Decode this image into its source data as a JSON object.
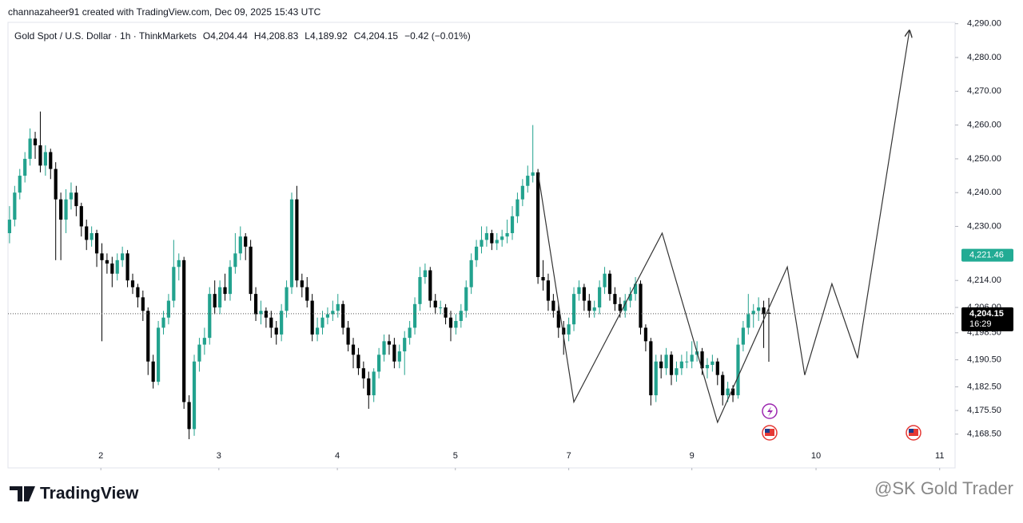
{
  "chart_data": {
    "type": "candlestick",
    "attribution": "channazaheer91 created with TradingView.com, Dec 09, 2025 15:43 UTC",
    "title": "Gold Spot / U.S. Dollar · 1h · ThinkMarkets",
    "header_values": [
      "O4,204.44",
      "H4,208.83",
      "L4,189.92",
      "C4,204.15",
      "−0.42 (−0.01%)"
    ],
    "up_color": "#22a28e",
    "down_color": "#000000",
    "ylim": [
      4158.5,
      4290.4
    ],
    "xlim": [
      -0.3,
      184.3
    ],
    "yticks": [
      {
        "value": 4290,
        "label": "4,290.00"
      },
      {
        "value": 4280,
        "label": "4,280.00"
      },
      {
        "value": 4270,
        "label": "4,270.00"
      },
      {
        "value": 4260,
        "label": "4,260.00"
      },
      {
        "value": 4250,
        "label": "4,250.00"
      },
      {
        "value": 4240,
        "label": "4,240.00"
      },
      {
        "value": 4230,
        "label": "4,230.00"
      },
      {
        "value": 4214,
        "label": "4,214.00"
      },
      {
        "value": 4206,
        "label": "4,206.00"
      },
      {
        "value": 4198.5,
        "label": "4,198.50"
      },
      {
        "value": 4190.5,
        "label": "4,190.50"
      },
      {
        "value": 4182.5,
        "label": "4,182.50"
      },
      {
        "value": 4175.5,
        "label": "4,175.50"
      },
      {
        "value": 4168.5,
        "label": "4,168.50"
      }
    ],
    "xticks": [
      {
        "value": 17.8,
        "label": "2"
      },
      {
        "value": 40.8,
        "label": "3"
      },
      {
        "value": 63.9,
        "label": "4"
      },
      {
        "value": 86.9,
        "label": "5"
      },
      {
        "value": 109,
        "label": "7"
      },
      {
        "value": 133,
        "label": "9"
      },
      {
        "value": 157.2,
        "label": "10"
      },
      {
        "value": 181.3,
        "label": "11"
      }
    ],
    "price_markers": [
      {
        "value": 4221.46,
        "label": "4,221.46",
        "color": "#22ab94"
      },
      {
        "value": 4204.15,
        "label": "4,204.15",
        "time": "16:29",
        "color": "#000000"
      }
    ],
    "projection": {
      "x": [
        103,
        110,
        127.2,
        138,
        151.6,
        155,
        160.3,
        165.3,
        175.4
      ],
      "y": [
        4246,
        4178,
        4228,
        4172,
        4218,
        4186,
        4213,
        4191,
        4288
      ],
      "color": "#333333"
    },
    "ohlc": [
      [
        4228,
        4236,
        4225,
        4232
      ],
      [
        4232,
        4242,
        4230,
        4240
      ],
      [
        4240,
        4247,
        4238,
        4245
      ],
      [
        4245,
        4252,
        4243,
        4250
      ],
      [
        4250,
        4259,
        4248,
        4256
      ],
      [
        4256,
        4258,
        4250,
        4254
      ],
      [
        4254,
        4264,
        4246,
        4248
      ],
      [
        4248,
        4254,
        4245,
        4252
      ],
      [
        4252,
        4253,
        4244,
        4247
      ],
      [
        4247,
        4249,
        4220,
        4238
      ],
      [
        4238,
        4240,
        4220,
        4232
      ],
      [
        4232,
        4241,
        4228,
        4238
      ],
      [
        4238,
        4243,
        4235,
        4240
      ],
      [
        4240,
        4242,
        4233,
        4236
      ],
      [
        4236,
        4237,
        4227,
        4230
      ],
      [
        4230,
        4232,
        4223,
        4226
      ],
      [
        4226,
        4230,
        4224,
        4228
      ],
      [
        4228,
        4229,
        4218,
        4222
      ],
      [
        4222,
        4225,
        4196,
        4220
      ],
      [
        4220,
        4222,
        4216,
        4219
      ],
      [
        4219,
        4221,
        4212,
        4216
      ],
      [
        4216,
        4222,
        4214,
        4220
      ],
      [
        4220,
        4224,
        4218,
        4222
      ],
      [
        4222,
        4223,
        4212,
        4214
      ],
      [
        4214,
        4216,
        4210,
        4212
      ],
      [
        4212,
        4213,
        4206,
        4209
      ],
      [
        4209,
        4211,
        4202,
        4205
      ],
      [
        4205,
        4206,
        4186,
        4190
      ],
      [
        4190,
        4192,
        4182,
        4184
      ],
      [
        4184,
        4202,
        4183,
        4200
      ],
      [
        4200,
        4205,
        4198,
        4203
      ],
      [
        4203,
        4210,
        4201,
        4208
      ],
      [
        4208,
        4226,
        4206,
        4218
      ],
      [
        4218,
        4222,
        4214,
        4220
      ],
      [
        4220,
        4221,
        4176,
        4178
      ],
      [
        4178,
        4180,
        4167,
        4170
      ],
      [
        4170,
        4192,
        4168,
        4190
      ],
      [
        4190,
        4197,
        4187,
        4195
      ],
      [
        4195,
        4200,
        4192,
        4197
      ],
      [
        4197,
        4212,
        4195,
        4210
      ],
      [
        4210,
        4214,
        4204,
        4206
      ],
      [
        4206,
        4214,
        4204,
        4212
      ],
      [
        4212,
        4216,
        4208,
        4210
      ],
      [
        4210,
        4220,
        4208,
        4218
      ],
      [
        4218,
        4228,
        4216,
        4222
      ],
      [
        4222,
        4230,
        4220,
        4227
      ],
      [
        4227,
        4228,
        4220,
        4224
      ],
      [
        4224,
        4226,
        4208,
        4210
      ],
      [
        4210,
        4212,
        4202,
        4204
      ],
      [
        4204,
        4208,
        4201,
        4205
      ],
      [
        4205,
        4206,
        4200,
        4203
      ],
      [
        4203,
        4205,
        4197,
        4200
      ],
      [
        4200,
        4202,
        4195,
        4198
      ],
      [
        4198,
        4207,
        4196,
        4205
      ],
      [
        4205,
        4214,
        4203,
        4212
      ],
      [
        4212,
        4240,
        4210,
        4238
      ],
      [
        4238,
        4242,
        4212,
        4214
      ],
      [
        4214,
        4216,
        4209,
        4212
      ],
      [
        4212,
        4215,
        4206,
        4208
      ],
      [
        4208,
        4210,
        4196,
        4198
      ],
      [
        4198,
        4203,
        4196,
        4200
      ],
      [
        4200,
        4205,
        4198,
        4203
      ],
      [
        4203,
        4206,
        4201,
        4204
      ],
      [
        4204,
        4208,
        4202,
        4205
      ],
      [
        4205,
        4210,
        4203,
        4207
      ],
      [
        4207,
        4208,
        4198,
        4200
      ],
      [
        4200,
        4202,
        4193,
        4195
      ],
      [
        4195,
        4197,
        4188,
        4192
      ],
      [
        4192,
        4194,
        4186,
        4188
      ],
      [
        4188,
        4190,
        4182,
        4185
      ],
      [
        4185,
        4187,
        4176,
        4180
      ],
      [
        4180,
        4188,
        4178,
        4187
      ],
      [
        4187,
        4194,
        4185,
        4192
      ],
      [
        4192,
        4198,
        4190,
        4196
      ],
      [
        4196,
        4198,
        4192,
        4195
      ],
      [
        4195,
        4197,
        4188,
        4190
      ],
      [
        4190,
        4195,
        4188,
        4193
      ],
      [
        4193,
        4199,
        4186,
        4197
      ],
      [
        4197,
        4202,
        4195,
        4200
      ],
      [
        4200,
        4209,
        4198,
        4207
      ],
      [
        4207,
        4218,
        4205,
        4215
      ],
      [
        4215,
        4219,
        4213,
        4217
      ],
      [
        4217,
        4218,
        4206,
        4208
      ],
      [
        4208,
        4210,
        4204,
        4206
      ],
      [
        4206,
        4208,
        4204,
        4206
      ],
      [
        4206,
        4207,
        4201,
        4203
      ],
      [
        4203,
        4205,
        4196,
        4200
      ],
      [
        4200,
        4204,
        4198,
        4202
      ],
      [
        4202,
        4207,
        4200,
        4205
      ],
      [
        4205,
        4214,
        4203,
        4212
      ],
      [
        4212,
        4222,
        4210,
        4220
      ],
      [
        4220,
        4226,
        4218,
        4224
      ],
      [
        4224,
        4230,
        4222,
        4226
      ],
      [
        4226,
        4230,
        4224,
        4228
      ],
      [
        4228,
        4229,
        4223,
        4225
      ],
      [
        4225,
        4228,
        4223,
        4226
      ],
      [
        4226,
        4229,
        4224,
        4227
      ],
      [
        4227,
        4232,
        4225,
        4228
      ],
      [
        4228,
        4236,
        4226,
        4233
      ],
      [
        4233,
        4240,
        4231,
        4238
      ],
      [
        4238,
        4244,
        4236,
        4242
      ],
      [
        4242,
        4248,
        4240,
        4245
      ],
      [
        4245,
        4260,
        4243,
        4246
      ],
      [
        4246,
        4247,
        4213,
        4215
      ],
      [
        4215,
        4220,
        4211,
        4214
      ],
      [
        4214,
        4216,
        4205,
        4208
      ],
      [
        4208,
        4210,
        4203,
        4205
      ],
      [
        4205,
        4207,
        4197,
        4200
      ],
      [
        4200,
        4202,
        4192,
        4198
      ],
      [
        4198,
        4203,
        4196,
        4201
      ],
      [
        4201,
        4212,
        4199,
        4210
      ],
      [
        4210,
        4214,
        4208,
        4212
      ],
      [
        4212,
        4213,
        4205,
        4208
      ],
      [
        4208,
        4210,
        4203,
        4205
      ],
      [
        4205,
        4208,
        4203,
        4206
      ],
      [
        4206,
        4214,
        4204,
        4212
      ],
      [
        4212,
        4218,
        4210,
        4216
      ],
      [
        4216,
        4217,
        4208,
        4210
      ],
      [
        4210,
        4212,
        4205,
        4207
      ],
      [
        4207,
        4209,
        4203,
        4205
      ],
      [
        4205,
        4210,
        4203,
        4208
      ],
      [
        4208,
        4212,
        4206,
        4210
      ],
      [
        4210,
        4215,
        4208,
        4213
      ],
      [
        4213,
        4214,
        4198,
        4200
      ],
      [
        4200,
        4201,
        4193,
        4196
      ],
      [
        4196,
        4197,
        4177,
        4180
      ],
      [
        4180,
        4192,
        4178,
        4190
      ],
      [
        4190,
        4192,
        4185,
        4188
      ],
      [
        4188,
        4194,
        4186,
        4192
      ],
      [
        4192,
        4193,
        4183,
        4186
      ],
      [
        4186,
        4190,
        4184,
        4188
      ],
      [
        4188,
        4192,
        4186,
        4190
      ],
      [
        4190,
        4193,
        4188,
        4190
      ],
      [
        4190,
        4196,
        4188,
        4192
      ],
      [
        4192,
        4196,
        4190,
        4193
      ],
      [
        4193,
        4194,
        4186,
        4188
      ],
      [
        4188,
        4191,
        4185,
        4189
      ],
      [
        4189,
        4192,
        4187,
        4190
      ],
      [
        4190,
        4191,
        4183,
        4186
      ],
      [
        4186,
        4187,
        4177,
        4180
      ],
      [
        4180,
        4184,
        4178,
        4182
      ],
      [
        4182,
        4183,
        4178,
        4180
      ],
      [
        4180,
        4197,
        4179,
        4195
      ],
      [
        4195,
        4202,
        4193,
        4200
      ],
      [
        4200,
        4210,
        4198,
        4204
      ],
      [
        4204,
        4207,
        4200,
        4205
      ],
      [
        4205,
        4209,
        4202,
        4206
      ],
      [
        4206,
        4208,
        4194,
        4204
      ],
      [
        4204.44,
        4208.83,
        4189.92,
        4204.15
      ]
    ],
    "brand": "TradingView",
    "watermark": "@SK Gold Trader"
  }
}
